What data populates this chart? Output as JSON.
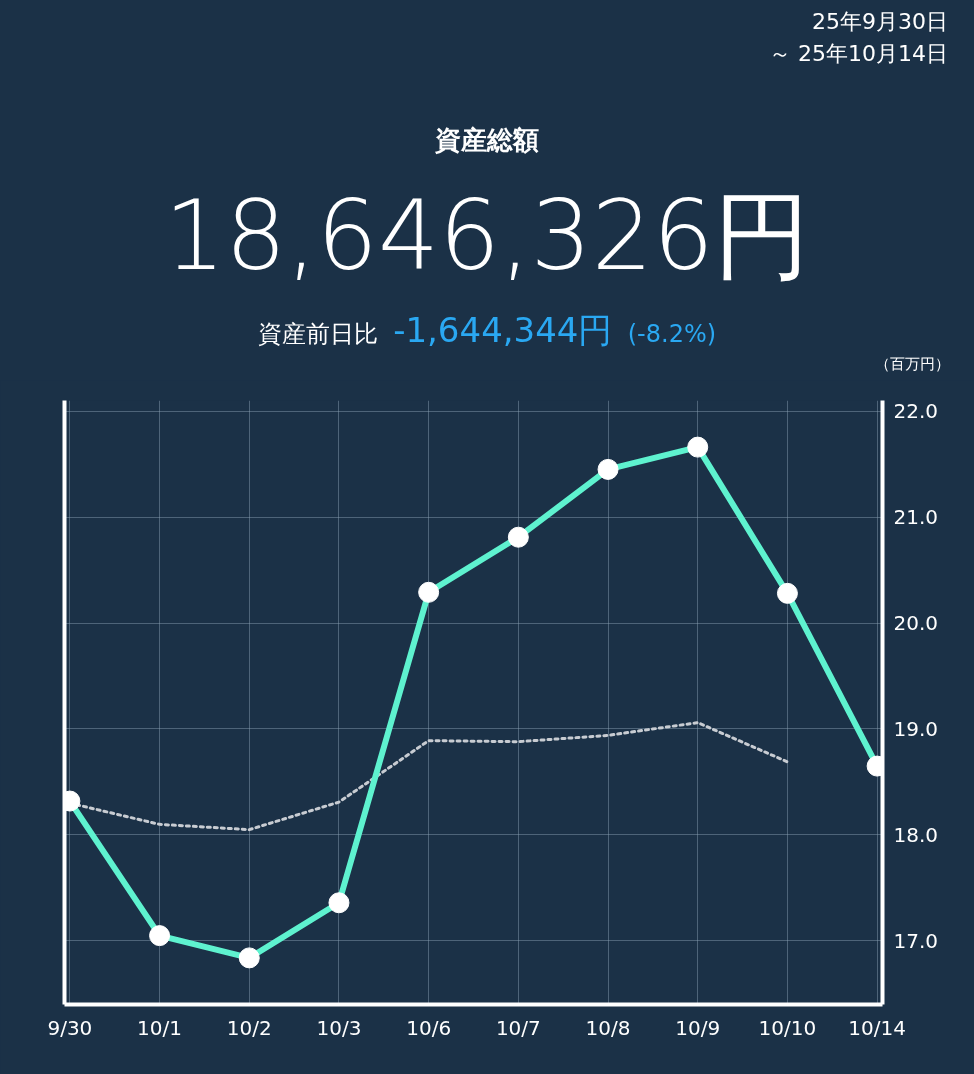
{
  "chart_data": {
    "type": "line",
    "title": "資産総額",
    "subtitle": "18,646,326円",
    "annotations": [
      "25年9月30日",
      "～ 25年10月14日",
      "資産前日比",
      "-1,644,344円",
      "(-8.2%)"
    ],
    "ylabel": "（百万円）",
    "categories": [
      "9/30",
      "10/1",
      "10/2",
      "10/3",
      "10/6",
      "10/7",
      "10/8",
      "10/9",
      "10/10",
      "10/14"
    ],
    "series": [
      {
        "color": "#5ef2cf",
        "values": [
          18.32,
          17.05,
          16.84,
          17.36,
          20.29,
          20.81,
          21.45,
          21.66,
          20.28,
          18.65
        ],
        "marker": "circle",
        "line_style": "solid"
      },
      {
        "color": "#c8ccd2",
        "values": [
          18.3,
          18.1,
          18.05,
          18.31,
          18.89,
          18.88,
          18.94,
          19.06,
          18.69,
          null
        ],
        "marker": "none",
        "line_style": "dotted"
      }
    ],
    "ylim": [
      16.4,
      22.1
    ],
    "yticks": [
      {
        "value": 17,
        "label": "17.0"
      },
      {
        "value": 18,
        "label": "18.0"
      },
      {
        "value": 19,
        "label": "19.0"
      },
      {
        "value": 20,
        "label": "20.0"
      },
      {
        "value": 21,
        "label": "21.0"
      },
      {
        "value": 22,
        "label": "22.0"
      }
    ],
    "grid": true
  }
}
